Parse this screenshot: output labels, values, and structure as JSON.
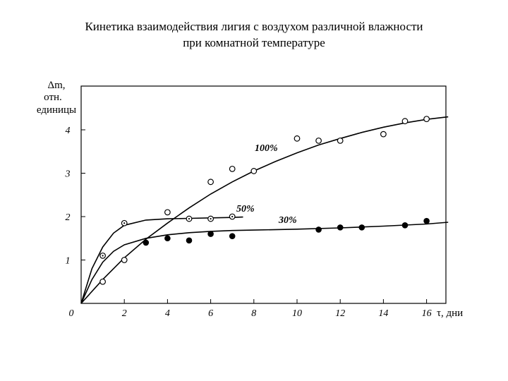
{
  "title_line1": "Кинетика взаимодействия лигия с воздухом различной влажности",
  "title_line2": "при комнатной температуре",
  "chart_data": {
    "type": "line",
    "ylabel_lines": [
      "Δm,",
      "отн.",
      "единицы"
    ],
    "xlabel": "τ, дни",
    "xlim": [
      0,
      17
    ],
    "ylim": [
      0,
      5
    ],
    "xticks": [
      0,
      2,
      4,
      6,
      8,
      10,
      12,
      14,
      16
    ],
    "yticks": [
      1,
      2,
      3,
      4
    ],
    "grid": false,
    "series": [
      {
        "name": "100%",
        "marker": "open-circle",
        "points": [
          [
            1,
            0.5
          ],
          [
            2,
            1.0
          ],
          [
            4,
            2.1
          ],
          [
            6,
            2.8
          ],
          [
            7,
            3.1
          ],
          [
            8,
            3.05
          ],
          [
            10,
            3.8
          ],
          [
            11,
            3.75
          ],
          [
            12,
            3.75
          ],
          [
            14,
            3.9
          ],
          [
            15,
            4.2
          ],
          [
            16,
            4.25
          ]
        ],
        "curve": [
          [
            0,
            0
          ],
          [
            1,
            0.55
          ],
          [
            2,
            1.05
          ],
          [
            3,
            1.48
          ],
          [
            4,
            1.85
          ],
          [
            5,
            2.2
          ],
          [
            6,
            2.52
          ],
          [
            7,
            2.8
          ],
          [
            8,
            3.05
          ],
          [
            9,
            3.27
          ],
          [
            10,
            3.47
          ],
          [
            11,
            3.65
          ],
          [
            12,
            3.8
          ],
          [
            13,
            3.94
          ],
          [
            14,
            4.06
          ],
          [
            15,
            4.16
          ],
          [
            16,
            4.24
          ],
          [
            17,
            4.3
          ]
        ]
      },
      {
        "name": "50%",
        "marker": "dotted-circle",
        "points": [
          [
            1,
            1.1
          ],
          [
            2,
            1.85
          ],
          [
            5,
            1.95
          ],
          [
            6,
            1.95
          ],
          [
            7,
            2.0
          ]
        ],
        "curve": [
          [
            0,
            0
          ],
          [
            0.5,
            0.8
          ],
          [
            1,
            1.3
          ],
          [
            1.5,
            1.62
          ],
          [
            2,
            1.8
          ],
          [
            3,
            1.92
          ],
          [
            4,
            1.95
          ],
          [
            5,
            1.96
          ],
          [
            6,
            1.97
          ],
          [
            7,
            1.98
          ],
          [
            7.5,
            1.99
          ]
        ]
      },
      {
        "name": "30%",
        "marker": "filled-circle",
        "points": [
          [
            3,
            1.4
          ],
          [
            4,
            1.5
          ],
          [
            5,
            1.45
          ],
          [
            6,
            1.6
          ],
          [
            7,
            1.55
          ],
          [
            11,
            1.7
          ],
          [
            12,
            1.75
          ],
          [
            13,
            1.75
          ],
          [
            15,
            1.8
          ],
          [
            16,
            1.9
          ]
        ],
        "curve": [
          [
            0,
            0
          ],
          [
            0.5,
            0.55
          ],
          [
            1,
            0.95
          ],
          [
            1.5,
            1.2
          ],
          [
            2,
            1.35
          ],
          [
            3,
            1.5
          ],
          [
            4,
            1.58
          ],
          [
            5,
            1.63
          ],
          [
            6,
            1.66
          ],
          [
            7,
            1.68
          ],
          [
            8,
            1.69
          ],
          [
            10,
            1.71
          ],
          [
            12,
            1.74
          ],
          [
            14,
            1.78
          ],
          [
            16,
            1.83
          ],
          [
            17,
            1.87
          ]
        ]
      }
    ]
  }
}
